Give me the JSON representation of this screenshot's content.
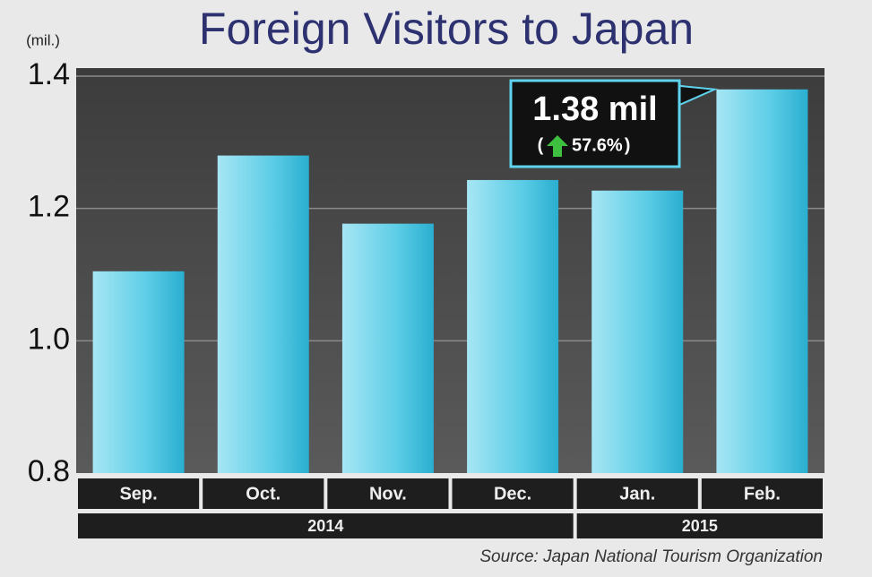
{
  "chart_data": {
    "type": "bar",
    "title": "Foreign Visitors to Japan",
    "unit_label": "(mil.)",
    "categories": [
      "Sep.",
      "Oct.",
      "Nov.",
      "Dec.",
      "Jan.",
      "Feb."
    ],
    "values": [
      1.105,
      1.28,
      1.177,
      1.243,
      1.227,
      1.38
    ],
    "color": "#3bbfdc",
    "year_groups": [
      {
        "label": "2014",
        "count": 4
      },
      {
        "label": "2015",
        "count": 2
      }
    ],
    "ylim": [
      0.8,
      1.4
    ],
    "yticks": [
      0.8,
      {
        "value": 1,
        "label": "1.0"
      },
      1.2,
      1.4
    ],
    "grid": true,
    "annotation": {
      "text": "1.38 mil",
      "change": "57.6%"
    },
    "source": "Source: Japan National Tourism Organization"
  }
}
